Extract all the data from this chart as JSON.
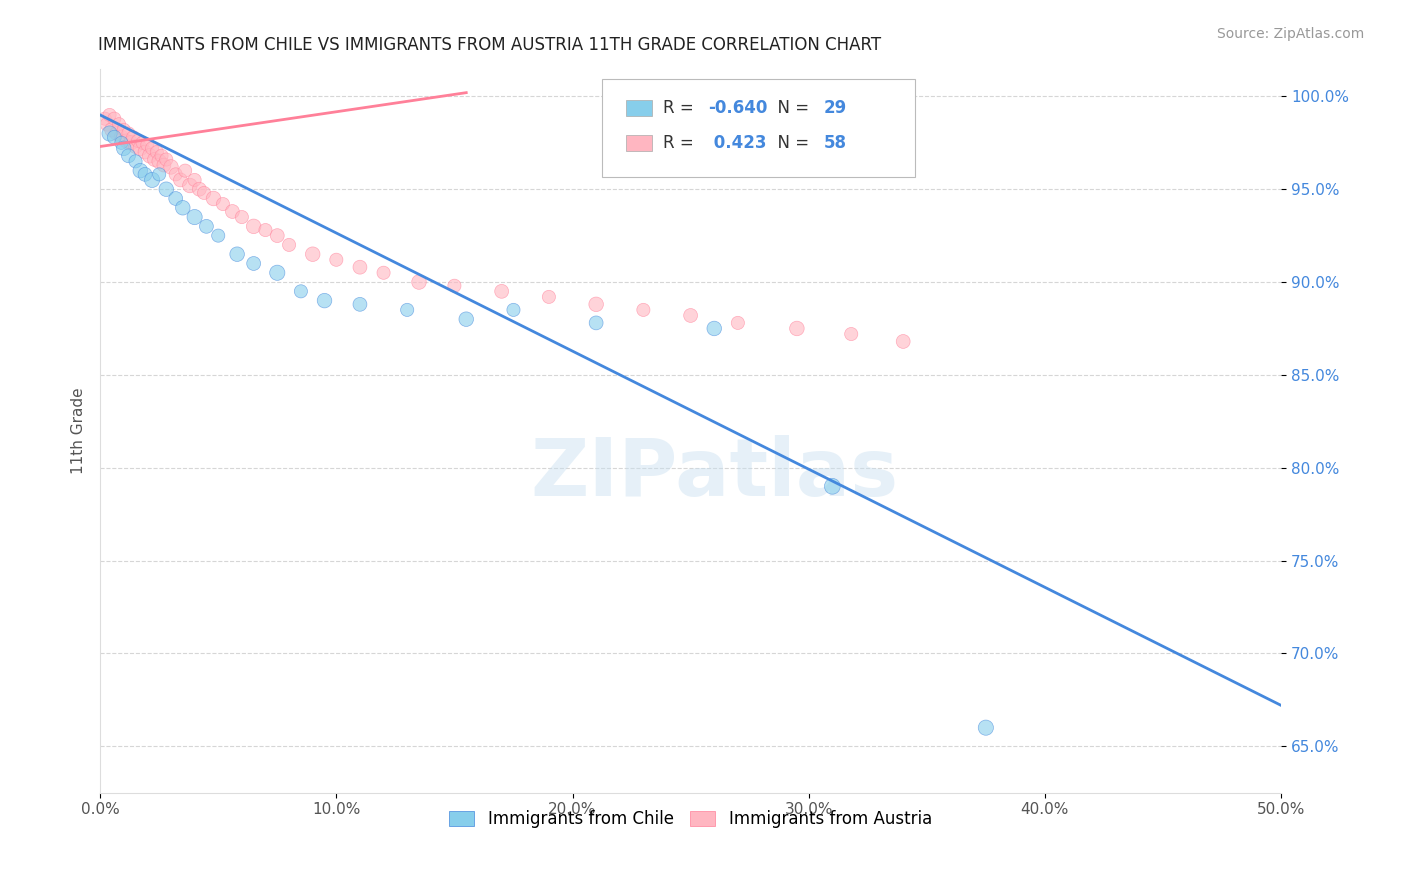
{
  "title": "IMMIGRANTS FROM CHILE VS IMMIGRANTS FROM AUSTRIA 11TH GRADE CORRELATION CHART",
  "source": "Source: ZipAtlas.com",
  "ylabel": "11th Grade",
  "legend_label_blue": "Immigrants from Chile",
  "legend_label_pink": "Immigrants from Austria",
  "R_blue": -0.64,
  "N_blue": 29,
  "R_pink": 0.423,
  "N_pink": 58,
  "xlim": [
    0.0,
    0.5
  ],
  "ylim": [
    0.625,
    1.015
  ],
  "xticks": [
    0.0,
    0.1,
    0.2,
    0.3,
    0.4,
    0.5
  ],
  "xtick_labels": [
    "0.0%",
    "10.0%",
    "20.0%",
    "30.0%",
    "40.0%",
    "50.0%"
  ],
  "yticks": [
    0.65,
    0.7,
    0.75,
    0.8,
    0.85,
    0.9,
    0.95,
    1.0
  ],
  "ytick_labels": [
    "65.0%",
    "70.0%",
    "75.0%",
    "80.0%",
    "85.0%",
    "90.0%",
    "95.0%",
    "100.0%"
  ],
  "color_blue": "#87CEEB",
  "color_pink": "#FFB6C1",
  "color_blue_line": "#4488DD",
  "color_pink_line": "#FF8099",
  "watermark": "ZIPatlas",
  "blue_line_x": [
    0.0,
    0.5
  ],
  "blue_line_y": [
    0.99,
    0.672
  ],
  "pink_line_x": [
    0.0,
    0.155
  ],
  "pink_line_y": [
    0.973,
    1.002
  ],
  "blue_scatter_x": [
    0.004,
    0.006,
    0.009,
    0.01,
    0.012,
    0.015,
    0.017,
    0.019,
    0.022,
    0.025,
    0.028,
    0.032,
    0.035,
    0.04,
    0.045,
    0.05,
    0.058,
    0.065,
    0.075,
    0.085,
    0.095,
    0.11,
    0.13,
    0.155,
    0.175,
    0.21,
    0.26,
    0.31,
    0.375
  ],
  "blue_scatter_y": [
    0.98,
    0.978,
    0.975,
    0.972,
    0.968,
    0.965,
    0.96,
    0.958,
    0.955,
    0.958,
    0.95,
    0.945,
    0.94,
    0.935,
    0.93,
    0.925,
    0.915,
    0.91,
    0.905,
    0.895,
    0.89,
    0.888,
    0.885,
    0.88,
    0.885,
    0.878,
    0.875,
    0.79,
    0.66
  ],
  "blue_scatter_size": [
    120,
    100,
    90,
    110,
    100,
    90,
    110,
    100,
    120,
    90,
    110,
    100,
    110,
    120,
    100,
    90,
    110,
    100,
    120,
    90,
    110,
    100,
    90,
    110,
    90,
    100,
    110,
    130,
    120
  ],
  "pink_scatter_x": [
    0.002,
    0.003,
    0.004,
    0.005,
    0.006,
    0.007,
    0.008,
    0.009,
    0.01,
    0.011,
    0.012,
    0.013,
    0.014,
    0.015,
    0.016,
    0.017,
    0.018,
    0.019,
    0.02,
    0.021,
    0.022,
    0.023,
    0.024,
    0.025,
    0.026,
    0.027,
    0.028,
    0.03,
    0.032,
    0.034,
    0.036,
    0.038,
    0.04,
    0.042,
    0.044,
    0.048,
    0.052,
    0.056,
    0.06,
    0.065,
    0.07,
    0.075,
    0.08,
    0.09,
    0.1,
    0.11,
    0.12,
    0.135,
    0.15,
    0.17,
    0.19,
    0.21,
    0.23,
    0.25,
    0.27,
    0.295,
    0.318,
    0.34
  ],
  "pink_scatter_y": [
    0.988,
    0.985,
    0.99,
    0.982,
    0.988,
    0.98,
    0.985,
    0.978,
    0.982,
    0.976,
    0.98,
    0.975,
    0.978,
    0.973,
    0.976,
    0.972,
    0.975,
    0.97,
    0.974,
    0.968,
    0.972,
    0.966,
    0.97,
    0.965,
    0.968,
    0.963,
    0.966,
    0.962,
    0.958,
    0.955,
    0.96,
    0.952,
    0.955,
    0.95,
    0.948,
    0.945,
    0.942,
    0.938,
    0.935,
    0.93,
    0.928,
    0.925,
    0.92,
    0.915,
    0.912,
    0.908,
    0.905,
    0.9,
    0.898,
    0.895,
    0.892,
    0.888,
    0.885,
    0.882,
    0.878,
    0.875,
    0.872,
    0.868
  ],
  "pink_scatter_size": [
    90,
    100,
    90,
    110,
    90,
    100,
    90,
    110,
    90,
    100,
    90,
    110,
    90,
    100,
    90,
    110,
    90,
    100,
    90,
    110,
    90,
    100,
    90,
    110,
    90,
    100,
    90,
    110,
    90,
    100,
    90,
    110,
    90,
    100,
    90,
    110,
    90,
    100,
    90,
    110,
    90,
    100,
    90,
    110,
    90,
    100,
    90,
    110,
    90,
    100,
    90,
    110,
    90,
    100,
    90,
    110,
    90,
    100
  ]
}
